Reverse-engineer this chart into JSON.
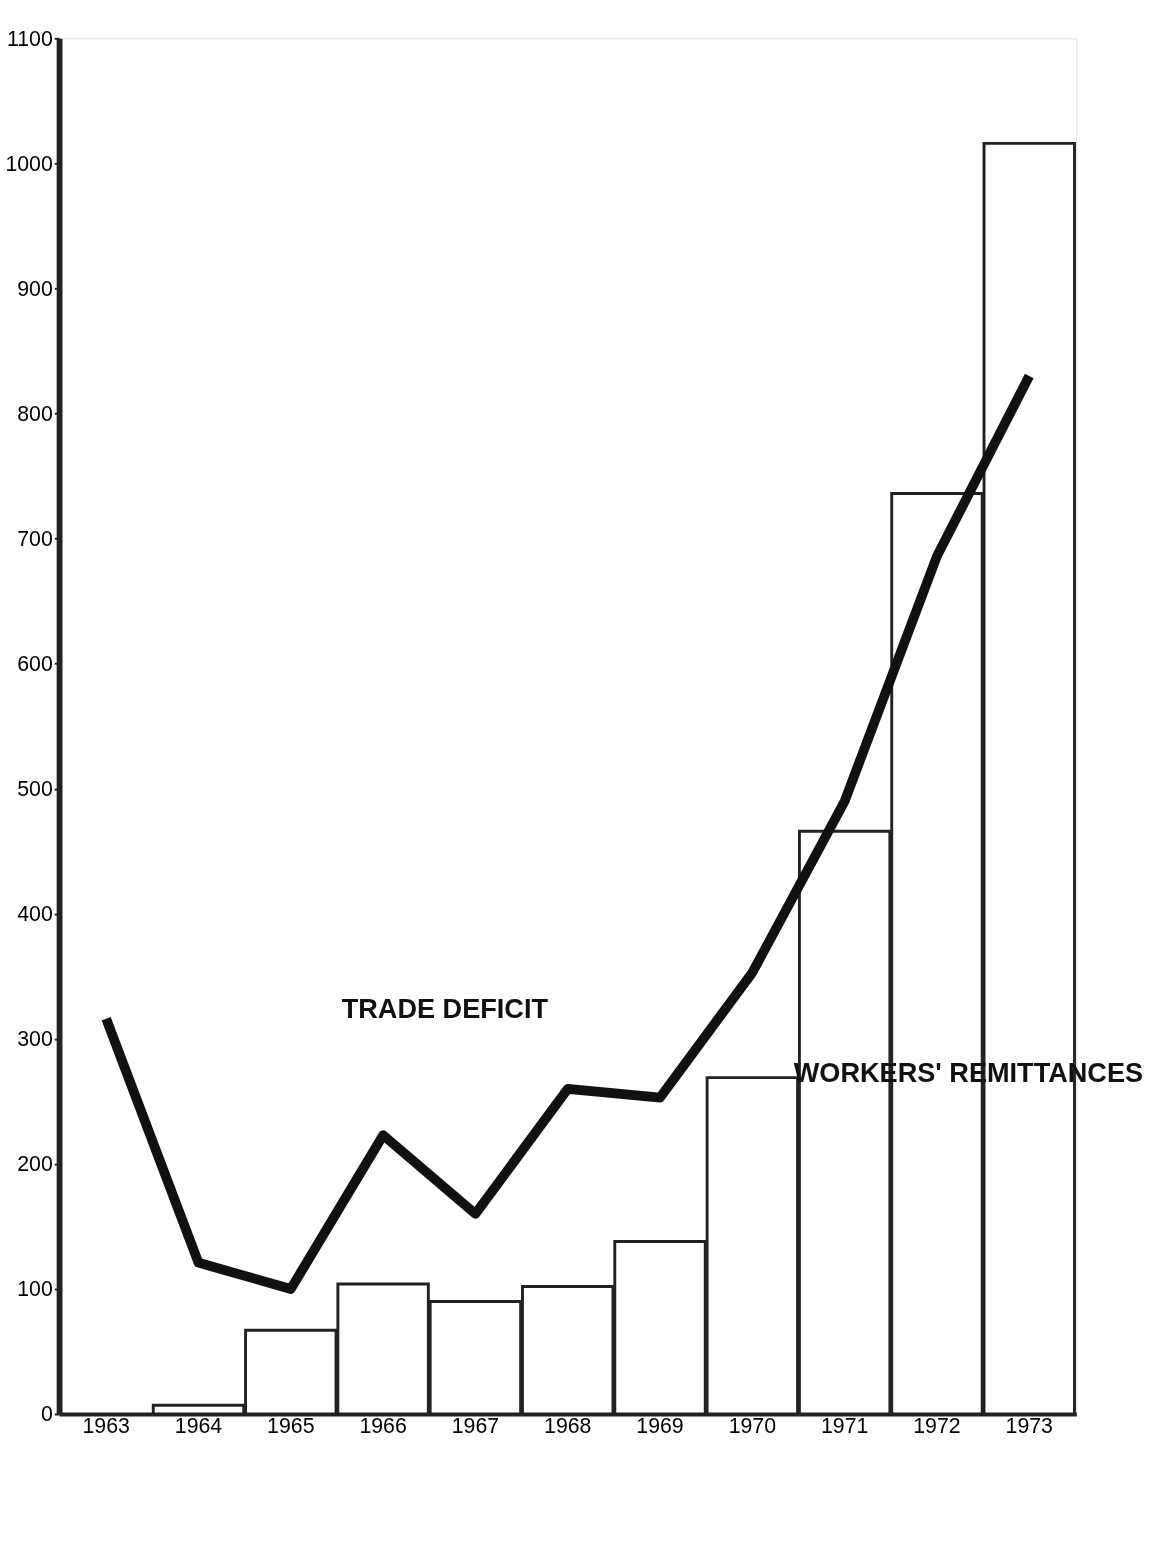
{
  "chart_data": {
    "type": "bar",
    "categories": [
      "1963",
      "1964",
      "1965",
      "1966",
      "1967",
      "1968",
      "1969",
      "1970",
      "1971",
      "1972",
      "1973"
    ],
    "series": [
      {
        "name": "WORKERS' REMITTANCES",
        "color": "#ffffff",
        "values": [
          null,
          7,
          67,
          104,
          90,
          102,
          138,
          269,
          466,
          736,
          1016
        ]
      },
      {
        "name": "TRADE DEFICIT",
        "type": "line",
        "color": "#111111",
        "values": [
          316,
          121,
          100,
          223,
          160,
          260,
          253,
          353,
          490,
          686,
          830
        ]
      }
    ],
    "ylim": [
      0,
      1100
    ],
    "yticks": [
      0,
      100,
      200,
      300,
      400,
      500,
      600,
      700,
      800,
      900,
      1000,
      1100
    ],
    "grid": false
  }
}
